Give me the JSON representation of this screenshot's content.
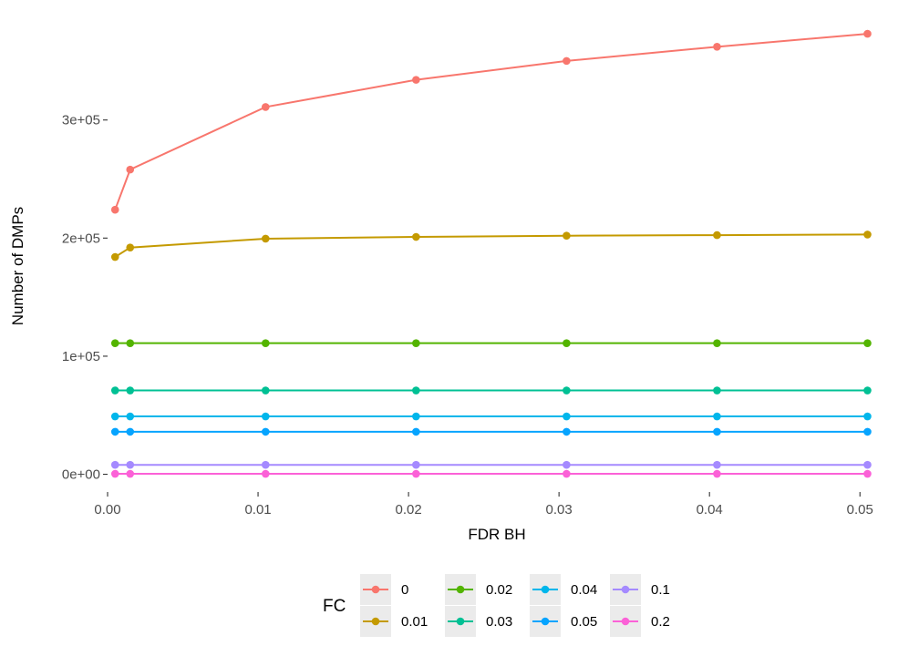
{
  "chart_data": {
    "type": "line",
    "title": "",
    "xlabel": "FDR BH",
    "ylabel": "Number of DMPs",
    "x": [
      0.0005,
      0.0015,
      0.0105,
      0.0205,
      0.0305,
      0.0405,
      0.0505
    ],
    "xlim": [
      0.0,
      0.0515
    ],
    "ylim": [
      -15000,
      380000
    ],
    "x_ticks": [
      0.0,
      0.01,
      0.02,
      0.03,
      0.04,
      0.05
    ],
    "x_tick_labels": [
      "0.00",
      "0.01",
      "0.02",
      "0.03",
      "0.04",
      "0.05"
    ],
    "y_ticks": [
      0,
      100000,
      200000,
      300000
    ],
    "y_tick_labels": [
      "0e+00",
      "1e+05",
      "2e+05",
      "3e+05"
    ],
    "grid": false,
    "legend": {
      "title": "FC",
      "placement": "bottom"
    },
    "series": [
      {
        "name": "0",
        "color": "#F8766D",
        "values": [
          224000,
          258000,
          311000,
          334000,
          350000,
          362000,
          373000
        ]
      },
      {
        "name": "0.01",
        "color": "#C49A00",
        "values": [
          184000,
          192000,
          199500,
          201000,
          202000,
          202500,
          203000
        ]
      },
      {
        "name": "0.02",
        "color": "#53B400",
        "values": [
          111000,
          111000,
          111000,
          111000,
          111000,
          111000,
          111000
        ]
      },
      {
        "name": "0.03",
        "color": "#00C094",
        "values": [
          71000,
          71000,
          71000,
          71000,
          71000,
          71000,
          71000
        ]
      },
      {
        "name": "0.04",
        "color": "#00B6EB",
        "values": [
          49000,
          49000,
          49000,
          49000,
          49000,
          49000,
          49000
        ]
      },
      {
        "name": "0.05",
        "color": "#06A4FF",
        "values": [
          36000,
          36000,
          36000,
          36000,
          36000,
          36000,
          36000
        ]
      },
      {
        "name": "0.1",
        "color": "#A58AFF",
        "values": [
          8000,
          8000,
          8000,
          8000,
          8000,
          8000,
          8000
        ]
      },
      {
        "name": "0.2",
        "color": "#FB61D7",
        "values": [
          400,
          400,
          400,
          400,
          400,
          400,
          400
        ]
      }
    ]
  }
}
